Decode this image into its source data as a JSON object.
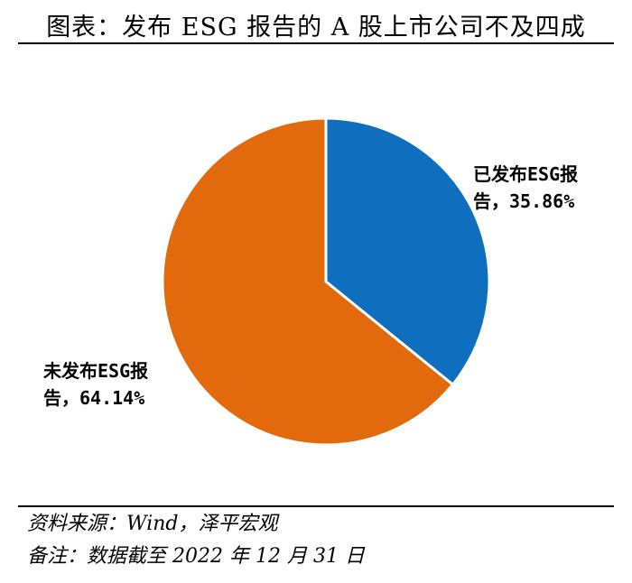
{
  "title": "图表：发布 ESG 报告的 A 股上市公司不及四成",
  "chart_data": {
    "type": "pie",
    "slices": [
      {
        "label": "已发布ESG报告",
        "value": 35.86,
        "display": "35.86%",
        "color": "#0f6ebe"
      },
      {
        "label": "未发布ESG报告",
        "value": 64.14,
        "display": "64.14%",
        "color": "#e2690c"
      }
    ],
    "start_angle_deg": 0,
    "direction": "clockwise",
    "slice_border_color": "#ffffff",
    "labels": [
      {
        "line1": "已发布ESG报",
        "line2": "告，35.86%"
      },
      {
        "line1": "未发布ESG报",
        "line2": "告，64.14%"
      }
    ]
  },
  "footer": {
    "source": "资料来源：Wind，泽平宏观",
    "note": "备注：数据截至 2022 年 12 月 31 日"
  }
}
